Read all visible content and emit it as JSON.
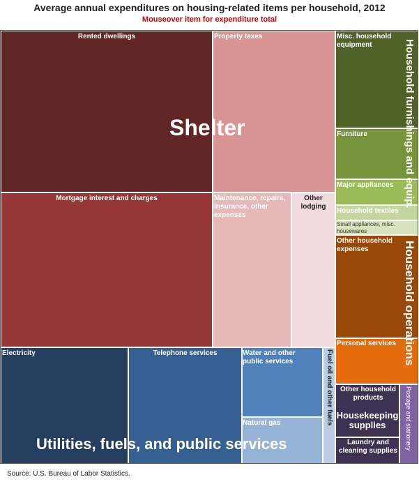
{
  "chart_data": {
    "type": "treemap",
    "title": "Average annual expenditures on housing-related items per household, 2012",
    "subtitle": "Mouseover item for expenditure total",
    "source": "Source: U.S. Bureau of Labor Statistics.",
    "groups": [
      {
        "name": "Shelter",
        "color": "#8b2b2b",
        "items": [
          {
            "id": "rented",
            "name": "Rented dwellings",
            "color": "#622525",
            "text": "#ffffff"
          },
          {
            "id": "property-taxes",
            "name": "Property taxes",
            "color": "#d99594",
            "text": "#ffffff"
          },
          {
            "id": "mortgage",
            "name": "Mortgage interest and charges",
            "color": "#953735",
            "text": "#ffffff"
          },
          {
            "id": "maintenance",
            "name": "Maintenance, repairs, insurance, other expenses",
            "color": "#e6b9b8",
            "text": "#ffffff"
          },
          {
            "id": "other-lodging",
            "name": "Other lodging",
            "color": "#f2dcdb",
            "text": "#222222"
          }
        ]
      },
      {
        "name": "Household furnishings and equip.",
        "color": "#77933c",
        "items": [
          {
            "id": "misc-equipment",
            "name": "Misc. household equipment",
            "color": "#4f6228",
            "text": "#ffffff"
          },
          {
            "id": "furniture",
            "name": "Furniture",
            "color": "#77933c",
            "text": "#ffffff"
          },
          {
            "id": "major-appliances",
            "name": "Major appliances",
            "color": "#9bbb59",
            "text": "#ffffff"
          },
          {
            "id": "textiles",
            "name": "Household textiles",
            "color": "#c3d69b",
            "text": "#ffffff"
          },
          {
            "id": "small-appliances",
            "name": "Small appliances, misc. housewares",
            "color": "#d7e4bd",
            "text": "#333333"
          }
        ]
      },
      {
        "name": "Household operations",
        "color": "#e46c0a",
        "items": [
          {
            "id": "other-expenses",
            "name": "Other household expenses",
            "color": "#984807",
            "text": "#ffffff"
          },
          {
            "id": "personal-services",
            "name": "Personal services",
            "color": "#e46c0a",
            "text": "#ffffff"
          }
        ]
      },
      {
        "name": "Housekeeping supplies",
        "color": "#60497a",
        "items": [
          {
            "id": "other-products",
            "name": "Other household products",
            "color": "#3f3151",
            "text": "#ffffff"
          },
          {
            "id": "laundry",
            "name": "Laundry and cleaning supplies",
            "color": "#403152",
            "text": "#ffffff"
          },
          {
            "id": "postage",
            "name": "Postage and stationery",
            "color": "#8064a2",
            "text": "#ffffff"
          }
        ]
      },
      {
        "name": "Utilities, fuels, and public services",
        "color": "#376092",
        "items": [
          {
            "id": "electricity",
            "name": "Electricity",
            "color": "#243f60",
            "text": "#ffffff"
          },
          {
            "id": "telephone",
            "name": "Telephone services",
            "color": "#376092",
            "text": "#ffffff"
          },
          {
            "id": "water",
            "name": "Water and other public services",
            "color": "#4f81bd",
            "text": "#ffffff"
          },
          {
            "id": "natural-gas",
            "name": "Natural gas",
            "color": "#95b3d7",
            "text": "#ffffff"
          },
          {
            "id": "fuel-oil",
            "name": "Fuel oil and other fuels",
            "color": "#b9cde5",
            "text": "#222222"
          }
        ]
      }
    ]
  }
}
